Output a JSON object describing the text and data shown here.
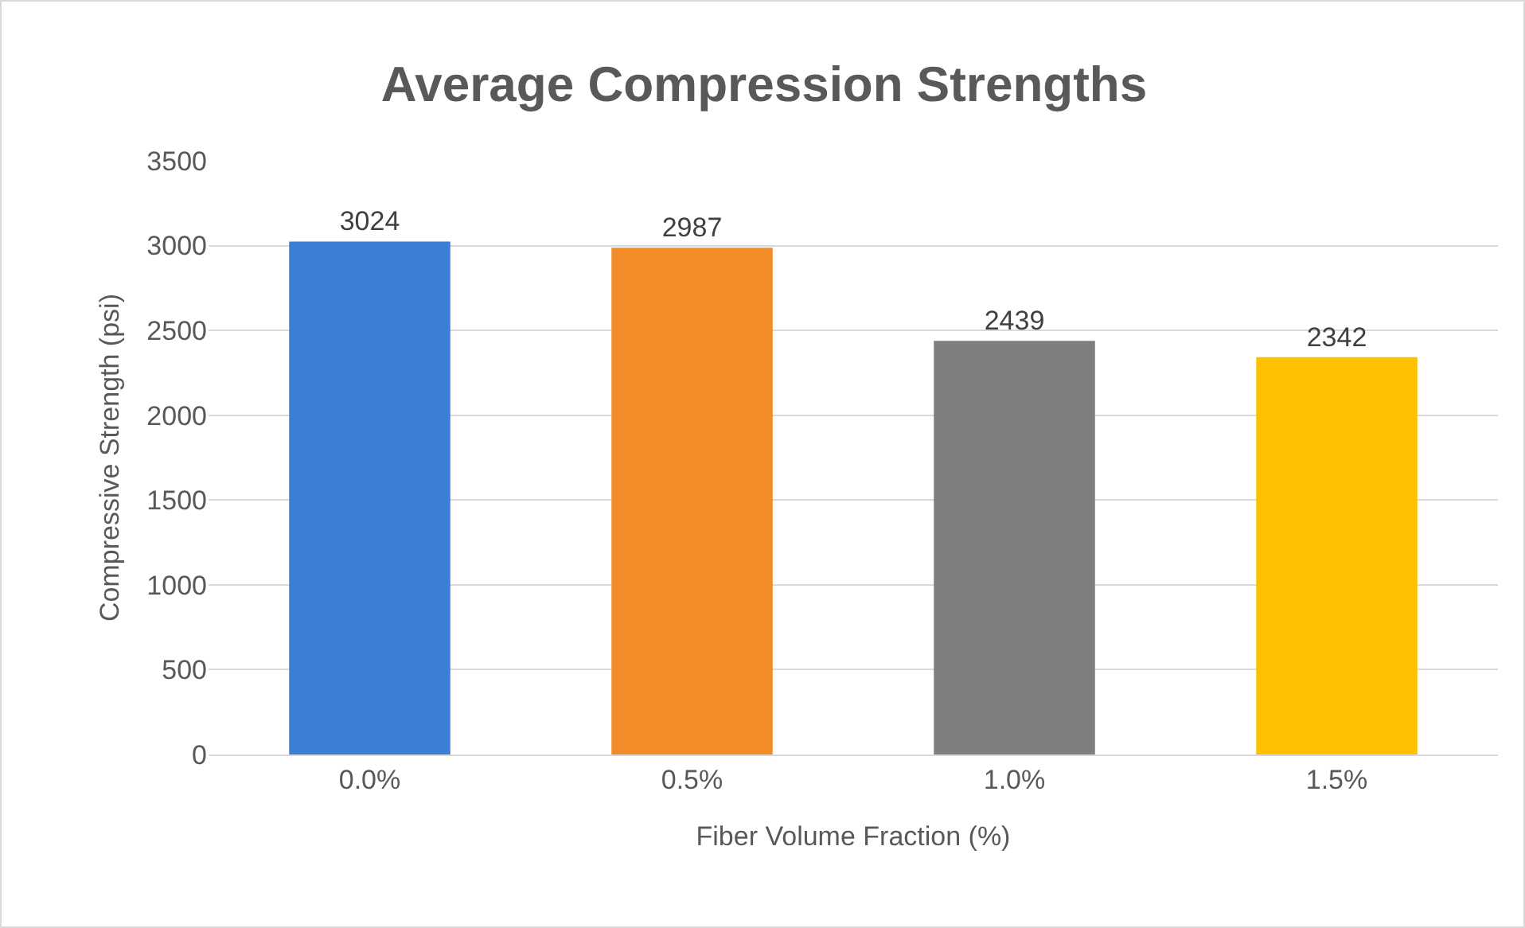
{
  "chart_data": {
    "type": "bar",
    "title": "Average Compression Strengths",
    "xlabel": "Fiber Volume Fraction (%)",
    "ylabel": "Compressive Strength (psi)",
    "categories": [
      "0.0%",
      "0.5%",
      "1.0%",
      "1.5%"
    ],
    "values": [
      3024,
      2987,
      2439,
      2342
    ],
    "colors": [
      "#3a7fd5",
      "#f28c28",
      "#7f7f7f",
      "#ffc000"
    ],
    "ylim": [
      0,
      3500
    ],
    "yticks": [
      0,
      500,
      1000,
      1500,
      2000,
      2500,
      3000,
      3500
    ],
    "grid": "y",
    "data_labels": true
  }
}
